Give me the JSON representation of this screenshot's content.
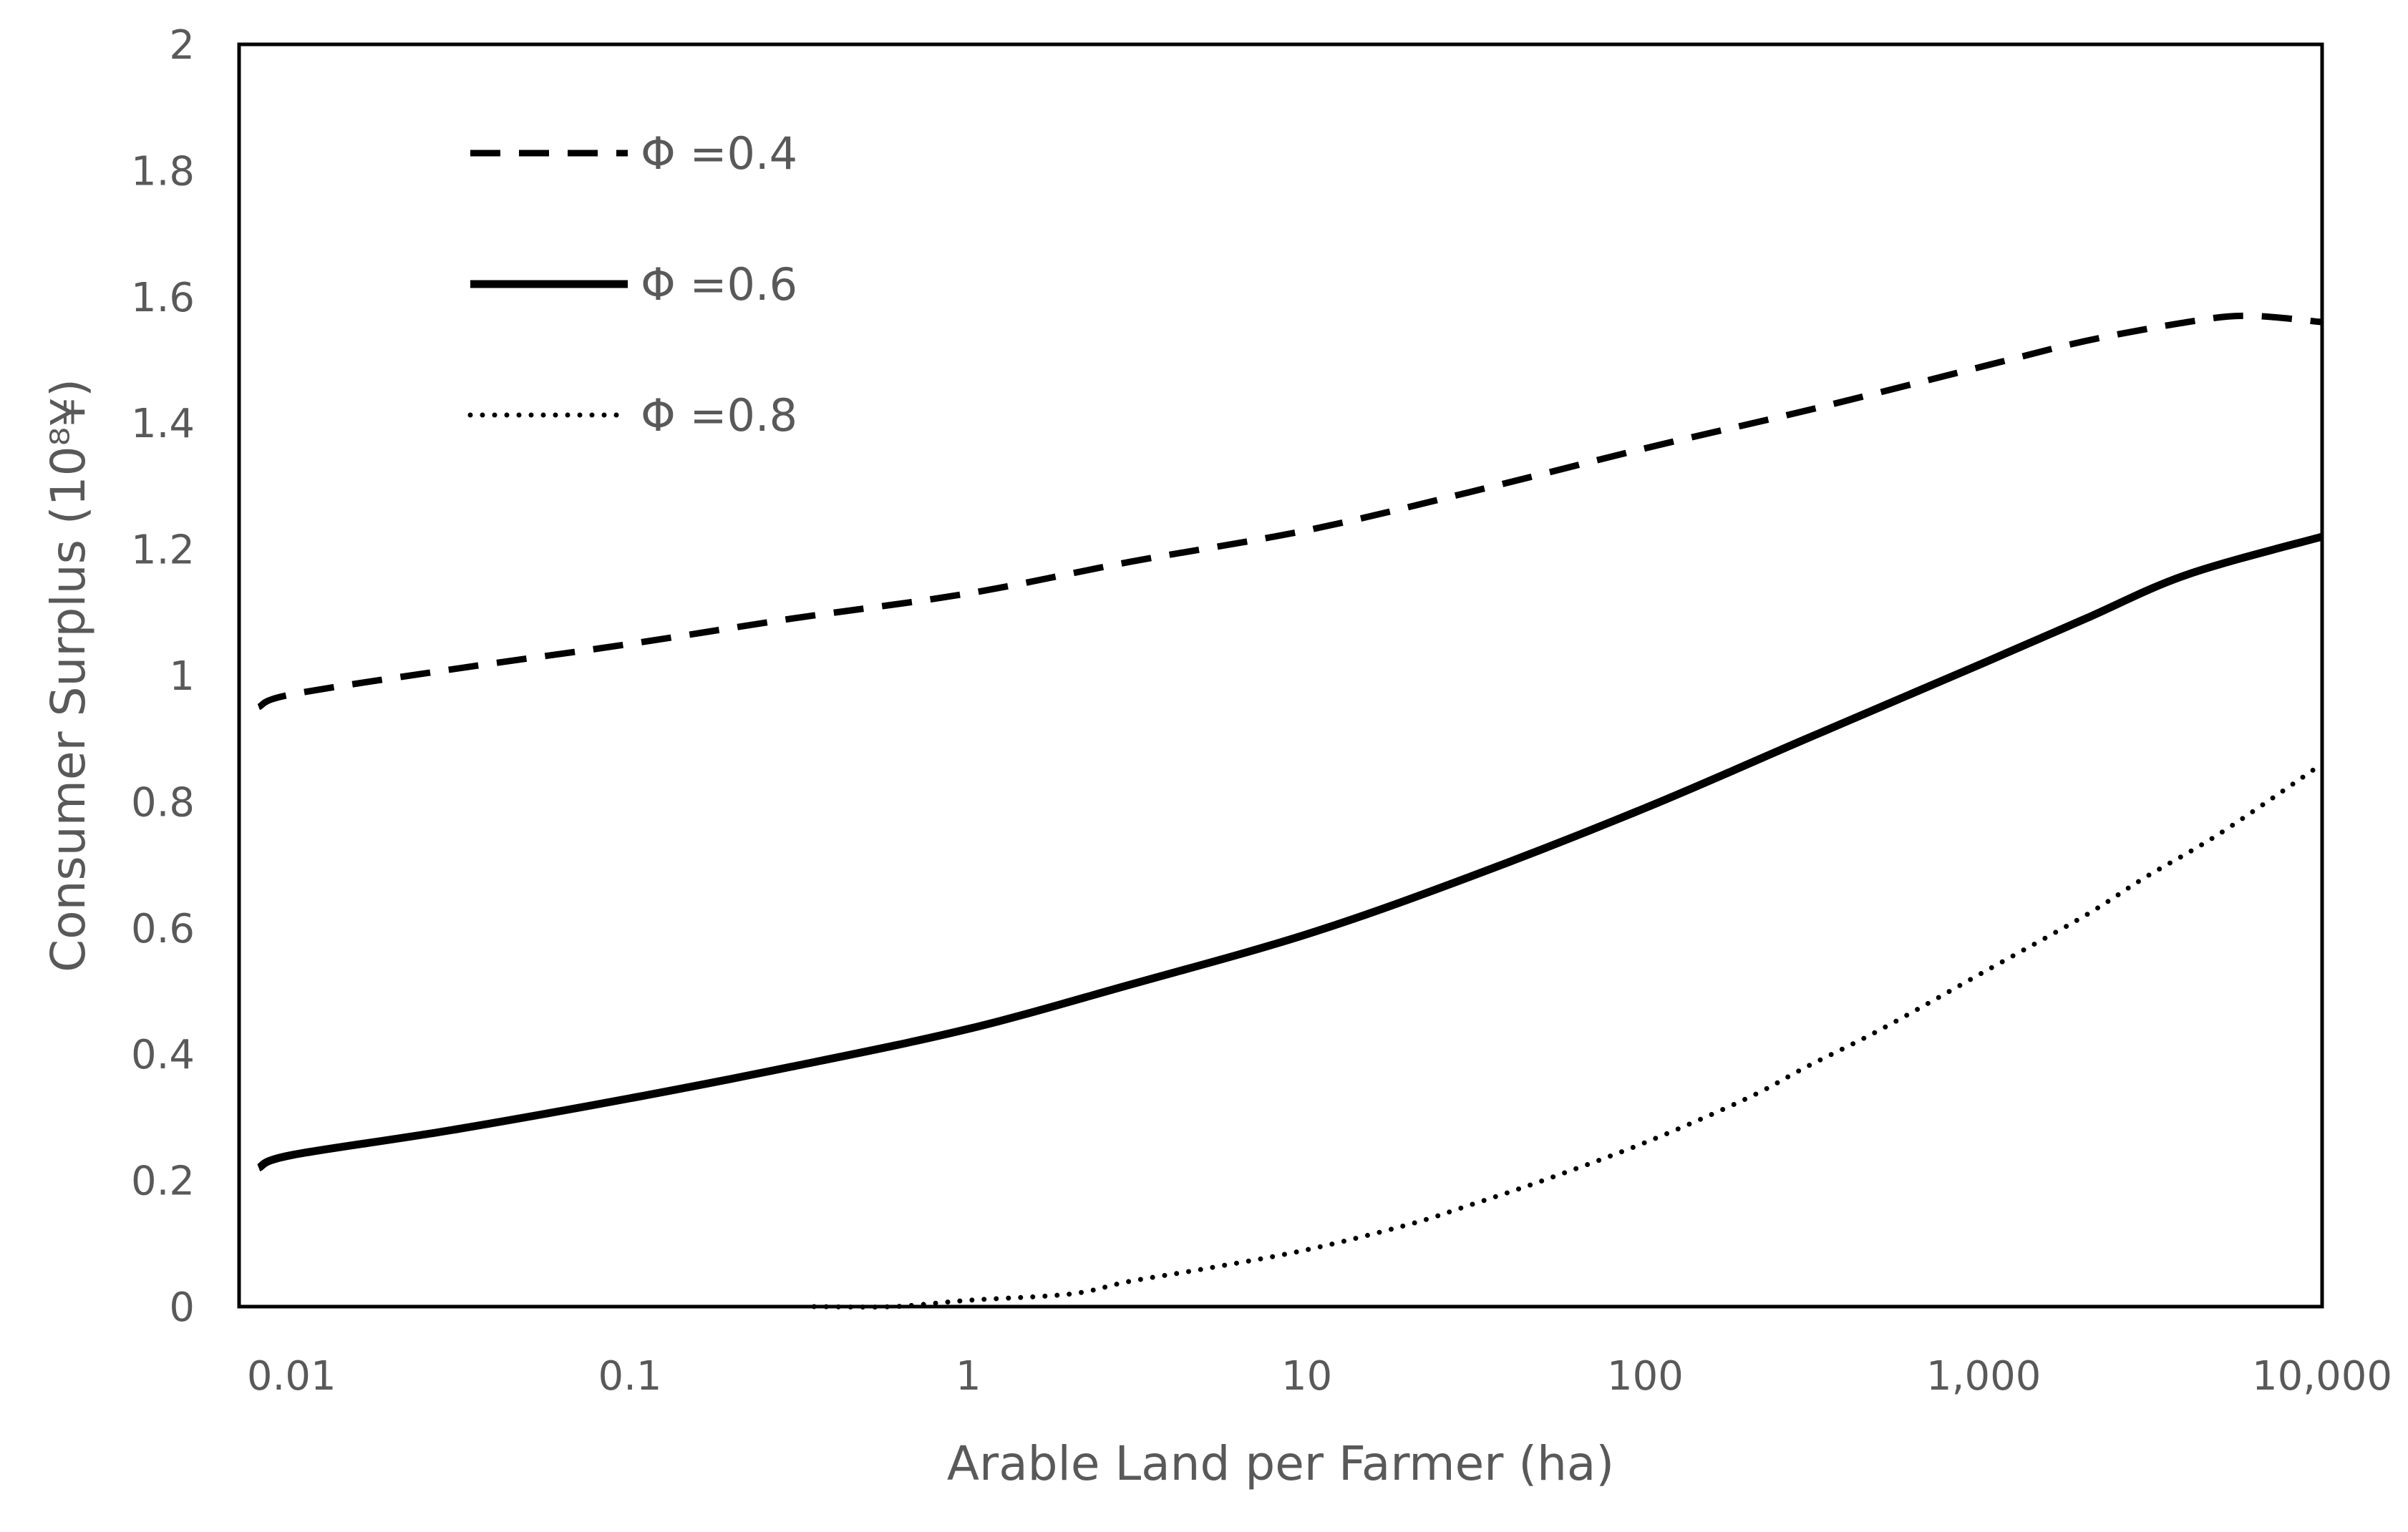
{
  "chart_data": {
    "type": "line",
    "title": "",
    "xlabel": "Arable Land per Farmer (ha)",
    "ylabel": "Consumer Surplus (10⁸¥)",
    "x_scale": "log",
    "xlim": [
      0.007,
      10000
    ],
    "ylim": [
      0,
      2
    ],
    "x_ticks": [
      0.01,
      0.1,
      1,
      10,
      100,
      1000,
      10000
    ],
    "x_tick_labels": [
      "0.01",
      "0.1",
      "1",
      "10",
      "100",
      "1,000",
      "10,000"
    ],
    "y_ticks": [
      0,
      0.2,
      0.4,
      0.6,
      0.8,
      1,
      1.2,
      1.4,
      1.6,
      1.8,
      2
    ],
    "y_tick_labels": [
      "0",
      "0.2",
      "0.4",
      "0.6",
      "0.8",
      "1",
      "1.2",
      "1.4",
      "1.6",
      "1.8",
      "2"
    ],
    "grid": false,
    "legend": "top-left",
    "series": [
      {
        "name": "Φ =0.4",
        "style": "dashed",
        "color": "#000000",
        "x": [
          0.008,
          0.01,
          0.03,
          0.1,
          0.3,
          1,
          3,
          10,
          30,
          100,
          300,
          1000,
          2000,
          4000,
          6000,
          10000
        ],
        "y": [
          0.95,
          0.97,
          1.01,
          1.05,
          1.09,
          1.13,
          1.18,
          1.23,
          1.29,
          1.36,
          1.42,
          1.49,
          1.53,
          1.56,
          1.57,
          1.56
        ]
      },
      {
        "name": "Φ =0.6",
        "style": "solid",
        "color": "#000000",
        "x": [
          0.008,
          0.01,
          0.03,
          0.1,
          0.3,
          1,
          3,
          10,
          30,
          100,
          300,
          1000,
          2000,
          4000,
          10000
        ],
        "y": [
          0.22,
          0.24,
          0.28,
          0.33,
          0.38,
          0.44,
          0.51,
          0.59,
          0.68,
          0.79,
          0.9,
          1.02,
          1.09,
          1.16,
          1.22
        ]
      },
      {
        "name": "Φ =0.8",
        "style": "dotted",
        "color": "#000000",
        "x": [
          0.35,
          0.6,
          1,
          2,
          3,
          5,
          10,
          20,
          30,
          50,
          100,
          200,
          300,
          500,
          1000,
          2000,
          3000,
          5000,
          10000
        ],
        "y": [
          0,
          0,
          0.01,
          0.02,
          0.04,
          0.06,
          0.09,
          0.13,
          0.16,
          0.2,
          0.26,
          0.33,
          0.38,
          0.44,
          0.53,
          0.62,
          0.68,
          0.75,
          0.86
        ]
      }
    ]
  }
}
